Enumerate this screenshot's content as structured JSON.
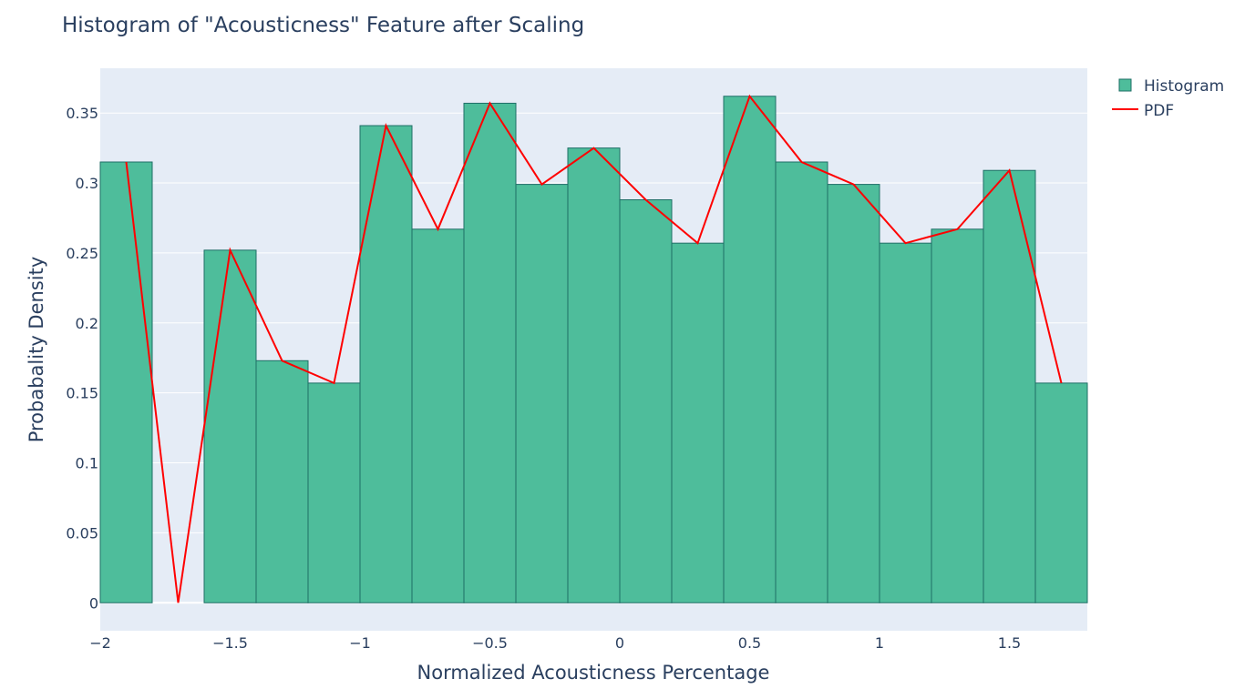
{
  "chart_data": {
    "type": "bar",
    "title": "Histogram of \"Acousticness\" Feature after Scaling",
    "xlabel": "Normalized Acousticness Percentage",
    "ylabel": "Probabality Density",
    "xlim": [
      -2,
      1.8
    ],
    "ylim": [
      -0.02,
      0.382
    ],
    "x_ticks": [
      -2,
      -1.5,
      -1,
      -0.5,
      0,
      0.5,
      1,
      1.5
    ],
    "x_tick_labels": [
      "−2",
      "−1.5",
      "−1",
      "−0.5",
      "0",
      "0.5",
      "1",
      "1.5"
    ],
    "y_ticks": [
      0,
      0.05,
      0.1,
      0.15,
      0.2,
      0.25,
      0.3,
      0.35
    ],
    "y_tick_labels": [
      "0",
      "0.05",
      "0.1",
      "0.15",
      "0.2",
      "0.25",
      "0.3",
      "0.35"
    ],
    "grid": true,
    "legend_position": "top-right",
    "bin_edges": [
      -2.0,
      -1.8,
      -1.6,
      -1.4,
      -1.2,
      -1.0,
      -0.8,
      -0.6,
      -0.4,
      -0.2,
      0.0,
      0.2,
      0.4,
      0.6,
      0.8,
      1.0,
      1.2,
      1.4,
      1.6,
      1.8
    ],
    "series": [
      {
        "name": "Histogram",
        "type": "bar",
        "color": "#4ebd9b",
        "edge_color": "#1e6e66",
        "values": [
          0.315,
          0,
          0.252,
          0.173,
          0.157,
          0.341,
          0.267,
          0.357,
          0.299,
          0.325,
          0.288,
          0.257,
          0.362,
          0.315,
          0.299,
          0.257,
          0.267,
          0.309,
          0.157
        ]
      },
      {
        "name": "PDF",
        "type": "line",
        "color": "#ff0000",
        "x": [
          -1.9,
          -1.7,
          -1.5,
          -1.3,
          -1.1,
          -0.9,
          -0.7,
          -0.5,
          -0.3,
          -0.1,
          0.1,
          0.3,
          0.5,
          0.7,
          0.9,
          1.1,
          1.3,
          1.5,
          1.7
        ],
        "values": [
          0.315,
          0,
          0.252,
          0.173,
          0.157,
          0.341,
          0.267,
          0.357,
          0.299,
          0.325,
          0.288,
          0.257,
          0.362,
          0.315,
          0.299,
          0.257,
          0.267,
          0.309,
          0.157
        ]
      }
    ]
  }
}
